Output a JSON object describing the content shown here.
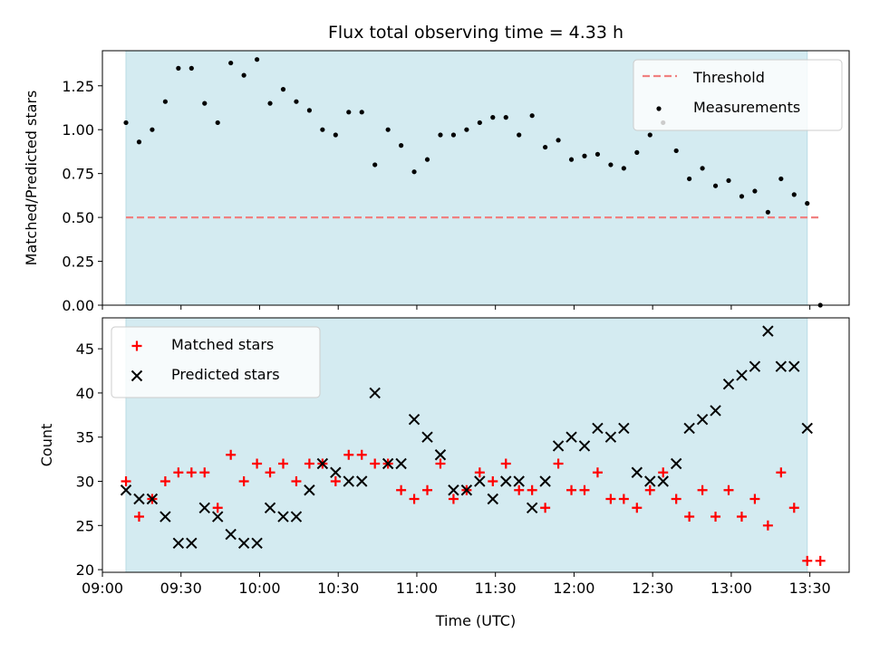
{
  "chart_data": [
    {
      "type": "scatter",
      "title": "Flux total observing time = 4.33 h",
      "xlabel": "",
      "ylabel": "Matched/Predicted stars",
      "xlim": [
        "09:00",
        "13:45"
      ],
      "ylim": [
        0,
        1.45
      ],
      "yticks": [
        0.0,
        0.25,
        0.5,
        0.75,
        1.0,
        1.25
      ],
      "ytick_labels": [
        "0.00",
        "0.25",
        "0.50",
        "0.75",
        "1.00",
        "1.25"
      ],
      "shaded_span": [
        "09:09",
        "13:29"
      ],
      "shaded_color": "#d4ebf1",
      "legend_position": "upper right",
      "threshold": {
        "name": "Threshold",
        "value": 0.5,
        "color": "#f08080",
        "style": "dashed",
        "x_range": [
          "09:09",
          "13:34"
        ]
      },
      "series": [
        {
          "name": "Measurements",
          "color": "#000000",
          "marker": "dot",
          "points": [
            [
              "09:09",
              1.04
            ],
            [
              "09:14",
              0.93
            ],
            [
              "09:19",
              1.0
            ],
            [
              "09:24",
              1.16
            ],
            [
              "09:29",
              1.35
            ],
            [
              "09:34",
              1.35
            ],
            [
              "09:39",
              1.15
            ],
            [
              "09:44",
              1.04
            ],
            [
              "09:49",
              1.38
            ],
            [
              "09:54",
              1.31
            ],
            [
              "09:59",
              1.4
            ],
            [
              "10:04",
              1.15
            ],
            [
              "10:09",
              1.23
            ],
            [
              "10:14",
              1.16
            ],
            [
              "10:19",
              1.11
            ],
            [
              "10:24",
              1.0
            ],
            [
              "10:29",
              0.97
            ],
            [
              "10:34",
              1.1
            ],
            [
              "10:39",
              1.1
            ],
            [
              "10:44",
              0.8
            ],
            [
              "10:49",
              1.0
            ],
            [
              "10:54",
              0.91
            ],
            [
              "10:59",
              0.76
            ],
            [
              "11:04",
              0.83
            ],
            [
              "11:09",
              0.97
            ],
            [
              "11:14",
              0.97
            ],
            [
              "11:19",
              1.0
            ],
            [
              "11:24",
              1.04
            ],
            [
              "11:29",
              1.07
            ],
            [
              "11:34",
              1.07
            ],
            [
              "11:39",
              0.97
            ],
            [
              "11:44",
              1.08
            ],
            [
              "11:49",
              0.9
            ],
            [
              "11:54",
              0.94
            ],
            [
              "11:59",
              0.83
            ],
            [
              "12:04",
              0.85
            ],
            [
              "12:09",
              0.86
            ],
            [
              "12:14",
              0.8
            ],
            [
              "12:19",
              0.78
            ],
            [
              "12:24",
              0.87
            ],
            [
              "12:29",
              0.97
            ],
            [
              "12:34",
              1.04
            ],
            [
              "12:39",
              0.88
            ],
            [
              "12:44",
              0.72
            ],
            [
              "12:49",
              0.78
            ],
            [
              "12:54",
              0.68
            ],
            [
              "12:59",
              0.71
            ],
            [
              "13:04",
              0.62
            ],
            [
              "13:09",
              0.65
            ],
            [
              "13:14",
              0.53
            ],
            [
              "13:19",
              0.72
            ],
            [
              "13:24",
              0.63
            ],
            [
              "13:29",
              0.58
            ],
            [
              "13:34",
              0.0
            ]
          ]
        }
      ]
    },
    {
      "type": "scatter",
      "title": "",
      "xlabel": "Time (UTC)",
      "ylabel": "Count",
      "xlim": [
        "09:00",
        "13:45"
      ],
      "ylim": [
        19.7,
        48.5
      ],
      "yticks": [
        20,
        25,
        30,
        35,
        40,
        45
      ],
      "ytick_labels": [
        "20",
        "25",
        "30",
        "35",
        "40",
        "45"
      ],
      "xticks": [
        "09:00",
        "09:30",
        "10:00",
        "10:30",
        "11:00",
        "11:30",
        "12:00",
        "12:30",
        "13:00",
        "13:30"
      ],
      "xtick_labels": [
        "09:00",
        "09:30",
        "10:00",
        "10:30",
        "11:00",
        "11:30",
        "12:00",
        "12:30",
        "13:00",
        "13:30"
      ],
      "shaded_span": [
        "09:09",
        "13:29"
      ],
      "shaded_color": "#d4ebf1",
      "legend_position": "upper left",
      "series": [
        {
          "name": "Matched stars",
          "color": "#ff0000",
          "marker": "plus",
          "points": [
            [
              "09:09",
              30
            ],
            [
              "09:14",
              26
            ],
            [
              "09:19",
              28
            ],
            [
              "09:24",
              30
            ],
            [
              "09:29",
              31
            ],
            [
              "09:34",
              31
            ],
            [
              "09:39",
              31
            ],
            [
              "09:44",
              27
            ],
            [
              "09:49",
              33
            ],
            [
              "09:54",
              30
            ],
            [
              "09:59",
              32
            ],
            [
              "10:04",
              31
            ],
            [
              "10:09",
              32
            ],
            [
              "10:14",
              30
            ],
            [
              "10:19",
              32
            ],
            [
              "10:24",
              32
            ],
            [
              "10:29",
              30
            ],
            [
              "10:34",
              33
            ],
            [
              "10:39",
              33
            ],
            [
              "10:44",
              32
            ],
            [
              "10:49",
              32
            ],
            [
              "10:54",
              29
            ],
            [
              "10:59",
              28
            ],
            [
              "11:04",
              29
            ],
            [
              "11:09",
              32
            ],
            [
              "11:14",
              28
            ],
            [
              "11:19",
              29
            ],
            [
              "11:24",
              31
            ],
            [
              "11:29",
              30
            ],
            [
              "11:34",
              32
            ],
            [
              "11:39",
              29
            ],
            [
              "11:44",
              29
            ],
            [
              "11:49",
              27
            ],
            [
              "11:54",
              32
            ],
            [
              "11:59",
              29
            ],
            [
              "12:04",
              29
            ],
            [
              "12:09",
              31
            ],
            [
              "12:14",
              28
            ],
            [
              "12:19",
              28
            ],
            [
              "12:24",
              27
            ],
            [
              "12:29",
              29
            ],
            [
              "12:34",
              31
            ],
            [
              "12:39",
              28
            ],
            [
              "12:44",
              26
            ],
            [
              "12:49",
              29
            ],
            [
              "12:54",
              26
            ],
            [
              "12:59",
              29
            ],
            [
              "13:04",
              26
            ],
            [
              "13:09",
              28
            ],
            [
              "13:14",
              25
            ],
            [
              "13:19",
              31
            ],
            [
              "13:24",
              27
            ],
            [
              "13:29",
              21
            ],
            [
              "13:34",
              21
            ]
          ]
        },
        {
          "name": "Predicted stars",
          "color": "#000000",
          "marker": "x",
          "points": [
            [
              "09:09",
              29
            ],
            [
              "09:14",
              28
            ],
            [
              "09:19",
              28
            ],
            [
              "09:24",
              26
            ],
            [
              "09:29",
              23
            ],
            [
              "09:34",
              23
            ],
            [
              "09:39",
              27
            ],
            [
              "09:44",
              26
            ],
            [
              "09:49",
              24
            ],
            [
              "09:54",
              23
            ],
            [
              "09:59",
              23
            ],
            [
              "10:04",
              27
            ],
            [
              "10:09",
              26
            ],
            [
              "10:14",
              26
            ],
            [
              "10:19",
              29
            ],
            [
              "10:24",
              32
            ],
            [
              "10:29",
              31
            ],
            [
              "10:34",
              30
            ],
            [
              "10:39",
              30
            ],
            [
              "10:44",
              40
            ],
            [
              "10:49",
              32
            ],
            [
              "10:54",
              32
            ],
            [
              "10:59",
              37
            ],
            [
              "11:04",
              35
            ],
            [
              "11:09",
              33
            ],
            [
              "11:14",
              29
            ],
            [
              "11:19",
              29
            ],
            [
              "11:24",
              30
            ],
            [
              "11:29",
              28
            ],
            [
              "11:34",
              30
            ],
            [
              "11:39",
              30
            ],
            [
              "11:44",
              27
            ],
            [
              "11:49",
              30
            ],
            [
              "11:54",
              34
            ],
            [
              "11:59",
              35
            ],
            [
              "12:04",
              34
            ],
            [
              "12:09",
              36
            ],
            [
              "12:14",
              35
            ],
            [
              "12:19",
              36
            ],
            [
              "12:24",
              31
            ],
            [
              "12:29",
              30
            ],
            [
              "12:34",
              30
            ],
            [
              "12:39",
              32
            ],
            [
              "12:44",
              36
            ],
            [
              "12:49",
              37
            ],
            [
              "12:54",
              38
            ],
            [
              "12:59",
              41
            ],
            [
              "13:04",
              42
            ],
            [
              "13:09",
              43
            ],
            [
              "13:14",
              47
            ],
            [
              "13:19",
              43
            ],
            [
              "13:24",
              43
            ],
            [
              "13:29",
              36
            ]
          ]
        }
      ]
    }
  ]
}
